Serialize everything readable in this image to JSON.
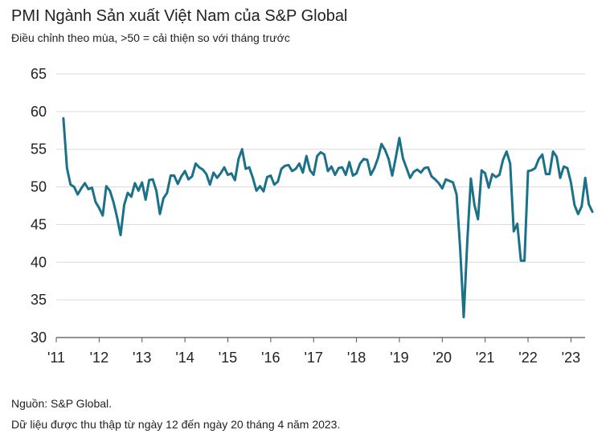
{
  "header": {
    "title": "PMI Ngành Sản xuất Việt Nam của S&P Global",
    "subtitle": "Điều chỉnh theo mùa, >50 = cải thiện so với tháng trước"
  },
  "footer": {
    "source": "Nguồn: S&P Global.",
    "note": "Dữ liệu được thu thập từ ngày 12 đến ngày 20 tháng 4 năm 2023."
  },
  "colors": {
    "line": "#1a7188",
    "grid": "#d9d9d9",
    "axis": "#555555"
  },
  "chart_data": {
    "type": "line",
    "title": "PMI Ngành Sản xuất Việt Nam của S&P Global",
    "subtitle": "Điều chỉnh theo mùa, >50 = cải thiện so với tháng trước",
    "ylim": [
      30,
      65
    ],
    "yticks": [
      30,
      35,
      40,
      45,
      50,
      55,
      60,
      65
    ],
    "xlim": [
      2011.0,
      2023.33
    ],
    "xticks": [
      {
        "label": "'11",
        "value": 2011
      },
      {
        "label": "'12",
        "value": 2012
      },
      {
        "label": "'13",
        "value": 2013
      },
      {
        "label": "'14",
        "value": 2014
      },
      {
        "label": "'15",
        "value": 2015
      },
      {
        "label": "'16",
        "value": 2016
      },
      {
        "label": "'17",
        "value": 2017
      },
      {
        "label": "'18",
        "value": 2018
      },
      {
        "label": "'19",
        "value": 2019
      },
      {
        "label": "'20",
        "value": 2020
      },
      {
        "label": "'21",
        "value": 2021
      },
      {
        "label": "'22",
        "value": 2022
      },
      {
        "label": "'23",
        "value": 2023
      }
    ],
    "grid": "horizontal",
    "legend": "none",
    "series": [
      {
        "start": "2011-03",
        "values": [
          59.1,
          52.5,
          50.3,
          50.0,
          49.0,
          49.8,
          50.5,
          49.7,
          49.9,
          48.0,
          47.2,
          46.2,
          50.1,
          49.5,
          48.0,
          46.0,
          43.6,
          47.6,
          49.2,
          48.7,
          50.5,
          49.5,
          50.6,
          48.3,
          50.9,
          51.0,
          49.5,
          46.4,
          48.5,
          49.2,
          51.5,
          51.5,
          50.4,
          51.4,
          52.1,
          51.0,
          51.4,
          53.1,
          52.6,
          52.3,
          51.7,
          50.3,
          51.9,
          51.2,
          51.8,
          52.6,
          51.6,
          51.8,
          50.9,
          53.7,
          55.0,
          52.4,
          52.6,
          51.2,
          49.5,
          50.1,
          49.4,
          51.3,
          51.5,
          50.3,
          50.7,
          52.4,
          52.8,
          52.9,
          52.1,
          52.4,
          53.1,
          51.9,
          54.1,
          52.2,
          51.6,
          54.1,
          54.6,
          54.3,
          52.1,
          52.7,
          51.6,
          52.5,
          52.6,
          51.6,
          53.3,
          51.5,
          51.8,
          53.1,
          53.7,
          53.6,
          51.6,
          52.5,
          53.8,
          55.7,
          54.9,
          53.7,
          51.5,
          53.9,
          56.5,
          53.8,
          52.5,
          51.2,
          52.0,
          52.3,
          51.9,
          52.5,
          52.6,
          51.4,
          51.0,
          50.5,
          49.8,
          51.0,
          50.8,
          50.6,
          49.0,
          41.9,
          32.7,
          42.7,
          51.1,
          47.6,
          45.7,
          52.2,
          51.8,
          49.9,
          51.7,
          51.3,
          51.6,
          53.6,
          54.7,
          53.1,
          44.1,
          45.1,
          40.2,
          40.2,
          52.1,
          52.2,
          52.5,
          53.7,
          54.3,
          51.7,
          51.7,
          54.7,
          54.0,
          51.2,
          52.7,
          52.5,
          50.6,
          47.6,
          46.4,
          47.4,
          51.2,
          47.7,
          46.7
        ]
      }
    ]
  }
}
